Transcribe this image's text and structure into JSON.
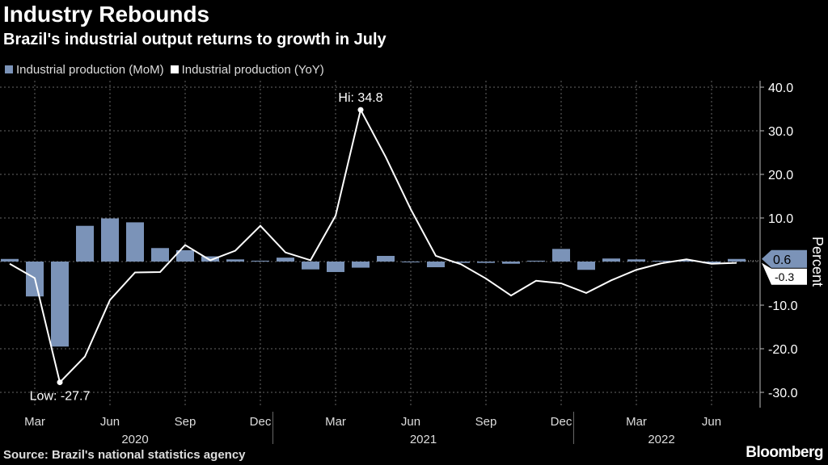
{
  "title": "Industry Rebounds",
  "subtitle": "Brazil's industrial output returns to growth in July",
  "source": "Source: Brazil's national statistics agency",
  "logo": "Bloomberg",
  "colors": {
    "bar": "#7b93b8",
    "line": "#ffffff",
    "background": "#000000"
  },
  "chart_data": {
    "type": "bar+line",
    "x": [
      "Feb 2020",
      "Mar 2020",
      "Apr 2020",
      "May 2020",
      "Jun 2020",
      "Jul 2020",
      "Aug 2020",
      "Sep 2020",
      "Oct 2020",
      "Nov 2020",
      "Dec 2020",
      "Jan 2021",
      "Feb 2021",
      "Mar 2021",
      "Apr 2021",
      "May 2021",
      "Jun 2021",
      "Jul 2021",
      "Aug 2021",
      "Sep 2021",
      "Oct 2021",
      "Nov 2021",
      "Dec 2021",
      "Jan 2022",
      "Feb 2022",
      "Mar 2022",
      "Apr 2022",
      "May 2022",
      "Jun 2022",
      "Jul 2022"
    ],
    "series": [
      {
        "name": "Industrial production (MoM)",
        "type": "bar",
        "values": [
          0.6,
          -8.0,
          -19.5,
          8.2,
          9.9,
          9.0,
          3.1,
          2.6,
          1.2,
          0.5,
          0.2,
          0.9,
          -1.8,
          -2.4,
          -1.4,
          1.3,
          0.0,
          -1.3,
          -0.3,
          -0.3,
          -0.5,
          0.2,
          2.9,
          -1.9,
          0.7,
          0.5,
          0.2,
          0.3,
          -0.4,
          0.6
        ]
      },
      {
        "name": "Industrial production (YoY)",
        "type": "line",
        "values": [
          -0.5,
          -3.8,
          -27.7,
          -21.8,
          -8.8,
          -2.5,
          -2.4,
          3.8,
          0.3,
          2.5,
          8.2,
          2.1,
          0.3,
          10.5,
          34.8,
          24.0,
          12.0,
          1.3,
          -0.6,
          -3.9,
          -7.8,
          -4.4,
          -5.0,
          -7.2,
          -4.3,
          -1.9,
          -0.4,
          0.5,
          -0.5,
          -0.3
        ]
      }
    ],
    "annotations": {
      "high": "Hi: 34.8",
      "low": "Low: -27.7",
      "last_bar_label": "0.6",
      "last_line_label": "-0.3"
    },
    "xticks": [
      "Mar",
      "Jun",
      "Sep",
      "Dec",
      "Mar",
      "Jun",
      "Sep",
      "Dec",
      "Mar",
      "Jun"
    ],
    "years": [
      "2020",
      "2021",
      "2022"
    ],
    "yticks": [
      "40.0",
      "30.0",
      "20.0",
      "10.0",
      "-10.0",
      "-20.0",
      "-30.0"
    ],
    "ylabel": "Percent",
    "ylim": [
      -32,
      42
    ],
    "grid": true,
    "legend_position": "top-left"
  }
}
